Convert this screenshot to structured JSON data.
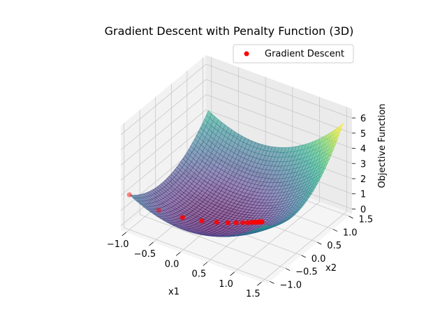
{
  "chart_data": {
    "type": "surface3d",
    "title": "Gradient Descent with Penalty Function (3D)",
    "xlabel": "x1",
    "ylabel": "x2",
    "zlabel": "Objective Function",
    "x_ticks": [
      "−1.0",
      "−0.5",
      "0.0",
      "0.5",
      "1.0",
      "1.5"
    ],
    "y_ticks": [
      "−1.0",
      "−0.5",
      "0.0",
      "0.5",
      "1.0",
      "1.5"
    ],
    "z_ticks": [
      "0",
      "1",
      "2",
      "3",
      "4",
      "5",
      "6"
    ],
    "xlim": [
      -1.1,
      1.6
    ],
    "ylim": [
      -1.1,
      1.6
    ],
    "zlim": [
      -0.3,
      6.6
    ],
    "grid": true,
    "legend_position": "top-right",
    "surface": {
      "colormap": "viridis",
      "alpha": 0.5,
      "x_range": [
        -1,
        1.5
      ],
      "y_range": [
        -1,
        1.5
      ],
      "function": "x1^2 + x2^2 + penalty"
    },
    "series": [
      {
        "name": "Gradient Descent",
        "marker_color": "#ff0000",
        "x": [
          -1.0,
          -0.62,
          -0.32,
          -0.08,
          0.1,
          0.24,
          0.34,
          0.42,
          0.48,
          0.52,
          0.55,
          0.575,
          0.595,
          0.61,
          0.62,
          0.63,
          0.635,
          0.64,
          0.645,
          0.65
        ],
        "y": [
          -1.0,
          -0.72,
          -0.48,
          -0.28,
          -0.12,
          0.0,
          0.09,
          0.16,
          0.21,
          0.25,
          0.28,
          0.3,
          0.32,
          0.335,
          0.345,
          0.355,
          0.36,
          0.365,
          0.37,
          0.375
        ],
        "z": [
          2.0,
          1.0,
          0.5,
          0.25,
          0.12,
          0.06,
          0.04,
          0.03,
          0.02,
          0.02,
          0.02,
          0.02,
          0.02,
          0.02,
          0.02,
          0.02,
          0.02,
          0.02,
          0.02,
          0.02
        ]
      }
    ]
  }
}
